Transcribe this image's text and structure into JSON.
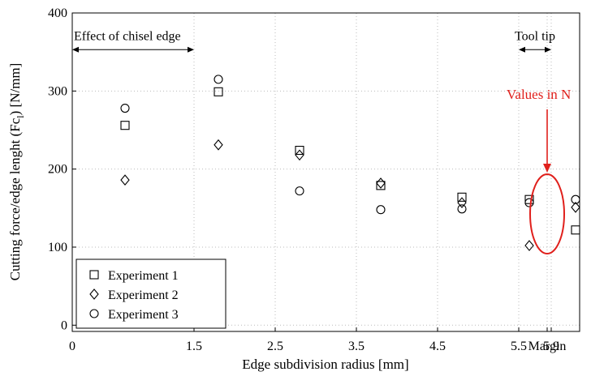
{
  "chart_data": {
    "type": "scatter",
    "xlabel": "Edge subdivision radius [mm]",
    "ylabel": "Cutting force/edge lenght (Fc",
    "ylabel_sub": "l",
    "ylabel_tail": ") [N/mm]",
    "x_ticks": [
      {
        "pos": 0,
        "label": "0"
      },
      {
        "pos": 1.5,
        "label": "1.5"
      },
      {
        "pos": 2.5,
        "label": "2.5"
      },
      {
        "pos": 3.5,
        "label": "3.5"
      },
      {
        "pos": 4.5,
        "label": "4.5"
      },
      {
        "pos": 5.5,
        "label": "5.5"
      },
      {
        "pos": 5.9,
        "label": "5.9"
      },
      {
        "pos": 6.6,
        "label": "Margin"
      }
    ],
    "y_ticks": [
      0,
      100,
      200,
      300,
      400
    ],
    "xlim": [
      0,
      6.25
    ],
    "ylim": [
      -8,
      400
    ],
    "legend_position": "bottom-left",
    "series": [
      {
        "name": "Experiment 1",
        "marker": "square",
        "x": [
          0.65,
          1.8,
          2.8,
          3.8,
          4.8,
          5.63,
          6.2
        ],
        "values": [
          256,
          299,
          224,
          179,
          164,
          161,
          122
        ]
      },
      {
        "name": "Experiment 2",
        "marker": "diamond",
        "x": [
          0.65,
          1.8,
          2.8,
          3.8,
          4.8,
          5.63,
          6.2
        ],
        "values": [
          186,
          231,
          218,
          182,
          157,
          102,
          151
        ]
      },
      {
        "name": "Experiment 3",
        "marker": "circle",
        "x": [
          0.65,
          1.8,
          2.8,
          3.8,
          4.8,
          5.63,
          6.2
        ],
        "values": [
          278,
          315,
          172,
          148,
          149,
          157,
          161
        ]
      }
    ],
    "annotations": {
      "chisel": {
        "label": "Effect of chisel edge",
        "x_from": 0,
        "x_to": 1.5,
        "y": 353
      },
      "tooltip": {
        "label": "Tool tip",
        "x_from": 5.5,
        "x_to": 5.9,
        "y": 353
      },
      "values_in": {
        "label": "Values in N",
        "color": "#e0201c"
      }
    }
  }
}
